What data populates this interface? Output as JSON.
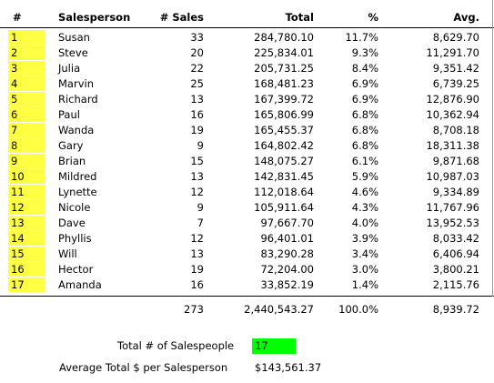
{
  "table": {
    "headers": [
      "#",
      "Salesperson",
      "# Sales",
      "Total",
      "%",
      "Avg."
    ],
    "rows": [
      [
        "1",
        "Susan",
        "33",
        "284,780.10",
        "11.7%",
        "8,629.70"
      ],
      [
        "2",
        "Steve",
        "20",
        "225,834.01",
        "9.3%",
        "11,291.70"
      ],
      [
        "3",
        "Julia",
        "22",
        "205,731.25",
        "8.4%",
        "9,351.42"
      ],
      [
        "4",
        "Marvin",
        "25",
        "168,481.23",
        "6.9%",
        "6,739.25"
      ],
      [
        "5",
        "Richard",
        "13",
        "167,399.72",
        "6.9%",
        "12,876.90"
      ],
      [
        "6",
        "Paul",
        "16",
        "165,806.99",
        "6.8%",
        "10,362.94"
      ],
      [
        "7",
        "Wanda",
        "19",
        "165,455.37",
        "6.8%",
        "8,708.18"
      ],
      [
        "8",
        "Gary",
        "9",
        "164,802.42",
        "6.8%",
        "18,311.38"
      ],
      [
        "9",
        "Brian",
        "15",
        "148,075.27",
        "6.1%",
        "9,871.68"
      ],
      [
        "10",
        "Mildred",
        "13",
        "142,831.45",
        "5.9%",
        "10,987.03"
      ],
      [
        "11",
        "Lynette",
        "12",
        "112,018.64",
        "4.6%",
        "9,334.89"
      ],
      [
        "12",
        "Nicole",
        "9",
        "105,911.64",
        "4.3%",
        "11,767.96"
      ],
      [
        "13",
        "Dave",
        "7",
        "97,667.70",
        "4.0%",
        "13,952.53"
      ],
      [
        "14",
        "Phyllis",
        "12",
        "96,401.01",
        "3.9%",
        "8,033.42"
      ],
      [
        "15",
        "Will",
        "13",
        "83,290.28",
        "3.4%",
        "6,406.94"
      ],
      [
        "16",
        "Hector",
        "19",
        "72,204.00",
        "3.0%",
        "3,800.21"
      ],
      [
        "17",
        "Amanda",
        "16",
        "33,852.19",
        "1.4%",
        "2,115.76"
      ]
    ],
    "totals": [
      "273",
      "2,440,543.27",
      "100.0%",
      "8,939.72"
    ]
  },
  "summary": [
    {
      "label": "Total # of Salespeople",
      "value": "17"
    },
    {
      "label": "Average Total $ per Salesperson",
      "value": "$143,561.37"
    }
  ]
}
